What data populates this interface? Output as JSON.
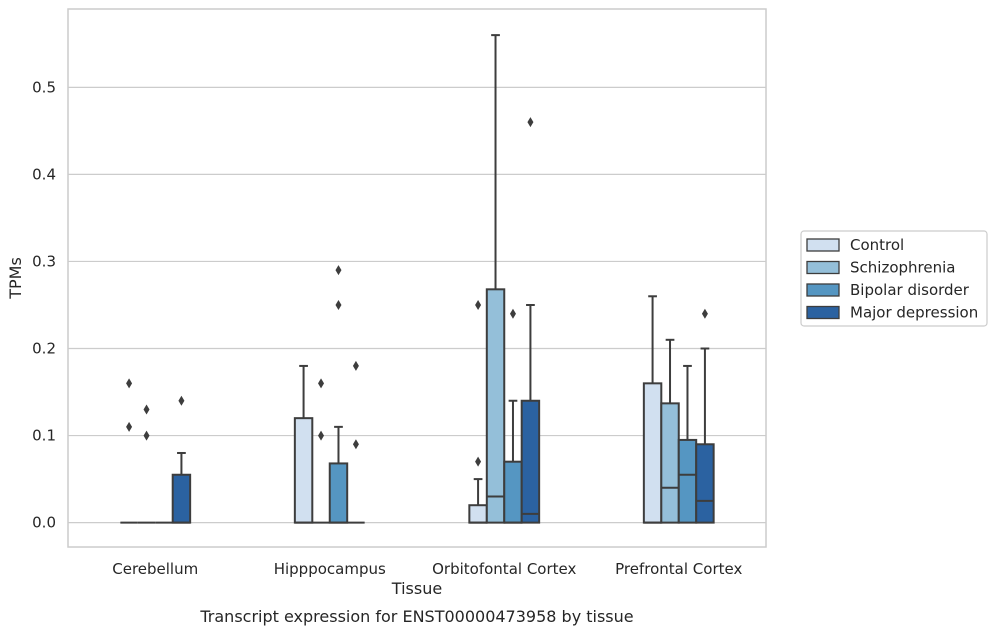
{
  "chart_data": {
    "type": "box",
    "xlabel": "Tissue",
    "ylabel": "TPMs",
    "caption": "Transcript expression for ENST00000473958 by tissue",
    "ylim": [
      -0.028,
      0.59
    ],
    "yticks": [
      0.0,
      0.1,
      0.2,
      0.3,
      0.4,
      0.5
    ],
    "ytick_labels": [
      "0.0",
      "0.1",
      "0.2",
      "0.3",
      "0.4",
      "0.5"
    ],
    "grid": true,
    "legend_position": "right",
    "categories": [
      "Cerebellum",
      "Hipppocampus",
      "Orbitofontal Cortex",
      "Prefrontal Cortex"
    ],
    "series": [
      {
        "name": "Control",
        "color": "#d1e0f0",
        "boxes": [
          {
            "q1": 0,
            "median": 0,
            "q3": 0,
            "whislo": 0,
            "whishi": 0,
            "fliers": [
              0.11,
              0.16
            ]
          },
          {
            "q1": 0,
            "median": 0,
            "q3": 0.12,
            "whislo": 0,
            "whishi": 0.18,
            "fliers": []
          },
          {
            "q1": 0,
            "median": 0,
            "q3": 0.02,
            "whislo": 0,
            "whishi": 0.05,
            "fliers": [
              0.07,
              0.25
            ]
          },
          {
            "q1": 0,
            "median": 0,
            "q3": 0.16,
            "whislo": 0,
            "whishi": 0.26,
            "fliers": []
          }
        ]
      },
      {
        "name": "Schizophrenia",
        "color": "#94bfd9",
        "boxes": [
          {
            "q1": 0,
            "median": 0,
            "q3": 0,
            "whislo": 0,
            "whishi": 0,
            "fliers": [
              0.1,
              0.13
            ]
          },
          {
            "q1": 0,
            "median": 0,
            "q3": 0,
            "whislo": 0,
            "whishi": 0,
            "fliers": [
              0.1,
              0.16
            ]
          },
          {
            "q1": 0,
            "median": 0.03,
            "q3": 0.268,
            "whislo": 0,
            "whishi": 0.56,
            "fliers": []
          },
          {
            "q1": 0,
            "median": 0.04,
            "q3": 0.137,
            "whislo": 0,
            "whishi": 0.21,
            "fliers": []
          }
        ]
      },
      {
        "name": "Bipolar disorder",
        "color": "#5596c2",
        "boxes": [
          {
            "q1": 0,
            "median": 0,
            "q3": 0,
            "whislo": 0,
            "whishi": 0,
            "fliers": []
          },
          {
            "q1": 0,
            "median": 0,
            "q3": 0.068,
            "whislo": 0,
            "whishi": 0.11,
            "fliers": [
              0.25,
              0.29
            ]
          },
          {
            "q1": 0,
            "median": 0,
            "q3": 0.07,
            "whislo": 0,
            "whishi": 0.14,
            "fliers": [
              0.24
            ]
          },
          {
            "q1": 0,
            "median": 0.055,
            "q3": 0.095,
            "whislo": 0,
            "whishi": 0.18,
            "fliers": []
          }
        ]
      },
      {
        "name": "Major depression",
        "color": "#2b62a1",
        "boxes": [
          {
            "q1": 0,
            "median": 0,
            "q3": 0.055,
            "whislo": 0,
            "whishi": 0.08,
            "fliers": [
              0.14
            ]
          },
          {
            "q1": 0,
            "median": 0,
            "q3": 0,
            "whislo": 0,
            "whishi": 0,
            "fliers": [
              0.09,
              0.18
            ]
          },
          {
            "q1": 0,
            "median": 0.01,
            "q3": 0.14,
            "whislo": 0,
            "whishi": 0.25,
            "fliers": [
              0.46
            ]
          },
          {
            "q1": 0,
            "median": 0.025,
            "q3": 0.09,
            "whislo": 0,
            "whishi": 0.2,
            "fliers": [
              0.24
            ]
          }
        ]
      }
    ]
  }
}
